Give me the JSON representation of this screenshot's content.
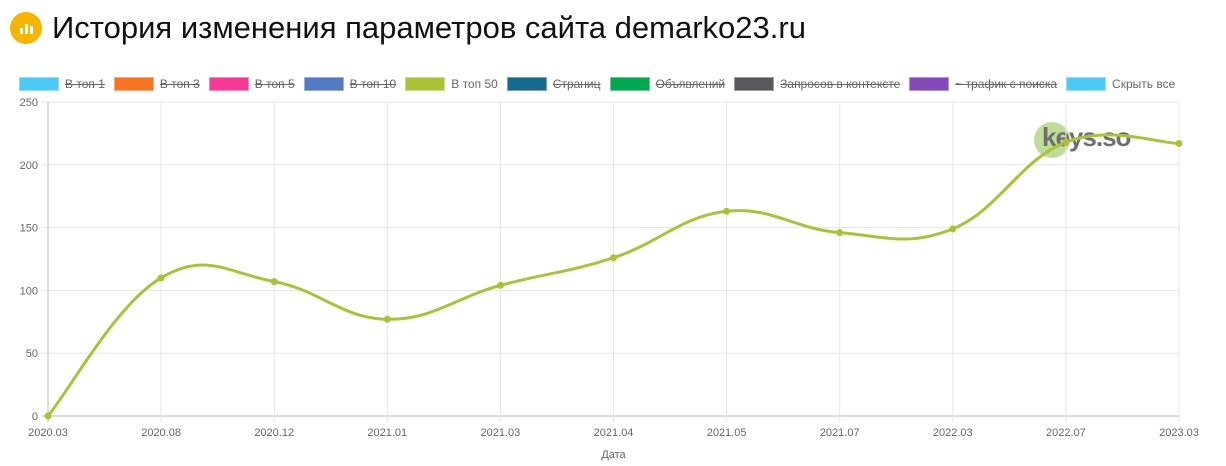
{
  "header": {
    "title": "История изменения параметров сайта demarko23.ru",
    "icon": "bar-chart-icon",
    "icon_color": "#f7b500"
  },
  "legend": [
    {
      "label": "В топ 1",
      "color": "#4ac9f5",
      "hidden": true
    },
    {
      "label": "В топ 3",
      "color": "#f77320",
      "hidden": true
    },
    {
      "label": "В топ 5",
      "color": "#f53995",
      "hidden": true
    },
    {
      "label": "В топ 10",
      "color": "#537bc4",
      "hidden": true
    },
    {
      "label": "В топ 50",
      "color": "#acc236",
      "hidden": false
    },
    {
      "label": "Страниц",
      "color": "#166a8f",
      "hidden": true
    },
    {
      "label": "Объявлений",
      "color": "#00a950",
      "hidden": true
    },
    {
      "label": "Запросов в контексте",
      "color": "#58595b",
      "hidden": true
    },
    {
      "label": "~ трафик с поиска",
      "color": "#8549ba",
      "hidden": true
    },
    {
      "label": "Скрыть все",
      "color": "#4dc9f6",
      "hidden": false
    }
  ],
  "watermark": "keys.so",
  "chart_data": {
    "type": "line",
    "xlabel": "Дата",
    "ylabel": "",
    "ylim": [
      0,
      250
    ],
    "yticks": [
      0,
      50,
      100,
      150,
      200,
      250
    ],
    "grid": true,
    "legend_placement": "top",
    "categories": [
      "2020.03",
      "2020.08",
      "2020.12",
      "2021.01",
      "2021.03",
      "2021.04",
      "2021.05",
      "2021.07",
      "2022.03",
      "2022.07",
      "2023.03"
    ],
    "series": [
      {
        "name": "В топ 50",
        "color": "#acc236",
        "values": [
          0,
          110,
          107,
          77,
          104,
          126,
          163,
          146,
          149,
          218,
          217
        ]
      }
    ]
  }
}
